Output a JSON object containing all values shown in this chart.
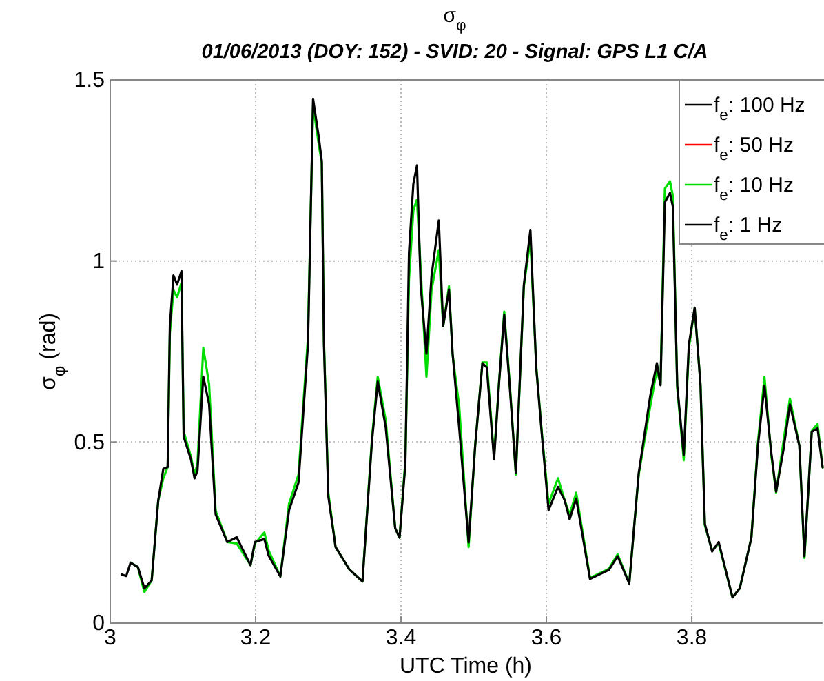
{
  "chart_data": {
    "type": "line",
    "title": "σ$_{φ}$",
    "subtitle": "01/06/2013 (DOY: 152) - SVID: 20 - Signal: GPS L1 C/A",
    "xlabel": "UTC Time (h)",
    "ylabel": "σ$_{φ}$ (rad)",
    "xlim": [
      3,
      3.98
    ],
    "ylim": [
      0,
      1.5
    ],
    "xticks": [
      3,
      3.2,
      3.4,
      3.6,
      3.8
    ],
    "yticks": [
      0,
      0.5,
      1,
      1.5
    ],
    "grid": true,
    "legend": "top right",
    "line_style": "solid",
    "marker": "none",
    "x": [
      3.016,
      3.022,
      3.028,
      3.038,
      3.047,
      3.057,
      3.066,
      3.073,
      3.079,
      3.082,
      3.087,
      3.092,
      3.098,
      3.101,
      3.111,
      3.116,
      3.12,
      3.128,
      3.136,
      3.145,
      3.161,
      3.174,
      3.193,
      3.199,
      3.212,
      3.218,
      3.234,
      3.246,
      3.259,
      3.272,
      3.279,
      3.287,
      3.291,
      3.294,
      3.3,
      3.31,
      3.329,
      3.347,
      3.36,
      3.368,
      3.379,
      3.392,
      3.398,
      3.406,
      3.411,
      3.417,
      3.422,
      3.427,
      3.435,
      3.442,
      3.452,
      3.458,
      3.466,
      3.471,
      3.48,
      3.493,
      3.502,
      3.512,
      3.518,
      3.528,
      3.535,
      3.542,
      3.55,
      3.558,
      3.569,
      3.578,
      3.586,
      3.594,
      3.603,
      3.616,
      3.625,
      3.632,
      3.641,
      3.66,
      3.686,
      3.698,
      3.714,
      3.727,
      3.743,
      3.752,
      3.757,
      3.763,
      3.77,
      3.774,
      3.78,
      3.789,
      3.796,
      3.804,
      3.812,
      3.818,
      3.828,
      3.837,
      3.856,
      3.866,
      3.882,
      3.891,
      3.9,
      3.909,
      3.916,
      3.926,
      3.935,
      3.948,
      3.955,
      3.965,
      3.973,
      3.98
    ],
    "series": [
      {
        "name": "f$_{e}$: 100 Hz",
        "color": "#000000",
        "values": [
          0.134,
          0.13,
          0.167,
          0.155,
          0.096,
          0.118,
          0.338,
          0.426,
          0.431,
          0.82,
          0.96,
          0.935,
          0.972,
          0.515,
          0.452,
          0.4,
          0.42,
          0.681,
          0.605,
          0.3,
          0.224,
          0.237,
          0.16,
          0.224,
          0.232,
          0.186,
          0.129,
          0.312,
          0.388,
          0.769,
          1.448,
          1.34,
          1.276,
          0.769,
          0.35,
          0.21,
          0.148,
          0.115,
          0.502,
          0.667,
          0.54,
          0.262,
          0.236,
          0.439,
          1.023,
          1.213,
          1.264,
          0.934,
          0.744,
          0.959,
          1.112,
          0.82,
          0.921,
          0.744,
          0.54,
          0.223,
          0.49,
          0.718,
          0.706,
          0.452,
          0.667,
          0.851,
          0.642,
          0.414,
          0.934,
          1.086,
          0.706,
          0.515,
          0.312,
          0.376,
          0.34,
          0.287,
          0.344,
          0.122,
          0.147,
          0.185,
          0.109,
          0.414,
          0.629,
          0.718,
          0.657,
          1.162,
          1.188,
          1.15,
          0.657,
          0.464,
          0.769,
          0.871,
          0.657,
          0.274,
          0.198,
          0.224,
          0.071,
          0.096,
          0.236,
          0.49,
          0.655,
          0.477,
          0.363,
          0.477,
          0.604,
          0.49,
          0.185,
          0.528,
          0.538,
          0.43
        ]
      },
      {
        "name": "f$_{e}$: 50 Hz",
        "color": "#ff0000",
        "values": [
          null,
          null,
          null,
          null,
          null,
          null,
          null,
          null,
          null,
          null,
          null,
          null,
          null,
          null,
          null,
          null,
          null,
          null,
          null,
          null,
          null,
          null,
          null,
          null,
          null,
          null,
          null,
          null,
          null,
          null,
          null,
          null,
          null,
          null,
          null,
          null,
          null,
          null,
          null,
          null,
          null,
          null,
          null,
          null,
          null,
          null,
          null,
          null,
          null,
          null,
          null,
          null,
          null,
          null,
          null,
          null,
          null,
          null,
          null,
          null,
          null,
          null,
          null,
          null,
          null,
          null,
          null,
          null,
          null,
          null,
          null,
          null,
          null,
          null,
          null,
          null,
          null,
          null,
          null,
          null,
          null,
          null,
          null,
          null,
          null,
          null,
          null,
          null,
          null,
          null,
          null,
          null,
          null,
          null,
          null,
          null,
          null,
          null,
          null,
          null,
          null,
          null,
          null,
          null,
          null,
          null
        ]
      },
      {
        "name": "f$_{e}$: 10 Hz",
        "color": "#00dd00",
        "values": [
          null,
          null,
          0.167,
          0.155,
          0.086,
          0.118,
          0.338,
          0.4,
          0.431,
          0.8,
          0.92,
          0.9,
          0.94,
          0.53,
          0.46,
          0.41,
          0.44,
          0.76,
          0.66,
          0.31,
          0.224,
          0.22,
          0.16,
          0.22,
          0.25,
          0.2,
          0.129,
          0.33,
          0.41,
          0.79,
          1.43,
          1.32,
          1.27,
          0.78,
          0.36,
          0.21,
          0.148,
          0.115,
          0.51,
          0.68,
          0.56,
          0.262,
          0.236,
          0.45,
          0.95,
          1.14,
          1.17,
          0.98,
          0.68,
          0.92,
          1.03,
          0.82,
          0.93,
          0.74,
          0.6,
          0.21,
          0.49,
          0.72,
          0.72,
          0.46,
          0.67,
          0.86,
          0.65,
          0.41,
          0.93,
          1.06,
          0.71,
          0.52,
          0.33,
          0.4,
          0.34,
          0.3,
          0.36,
          0.125,
          0.15,
          0.19,
          0.11,
          0.41,
          0.6,
          0.7,
          0.66,
          1.2,
          1.22,
          1.18,
          0.65,
          0.45,
          0.76,
          0.87,
          0.66,
          0.27,
          0.2,
          0.22,
          0.071,
          0.096,
          0.236,
          0.5,
          0.68,
          0.47,
          0.36,
          0.5,
          0.62,
          0.49,
          0.18,
          0.53,
          0.55,
          0.43
        ]
      },
      {
        "name": "f$_{e}$: 1 Hz",
        "color": "#000000",
        "values": [
          null,
          null,
          null,
          null,
          null,
          null,
          null,
          null,
          null,
          null,
          null,
          null,
          null,
          null,
          null,
          null,
          null,
          null,
          null,
          null,
          null,
          null,
          null,
          null,
          null,
          null,
          null,
          null,
          null,
          null,
          null,
          null,
          null,
          null,
          null,
          null,
          null,
          null,
          null,
          null,
          null,
          null,
          null,
          null,
          null,
          null,
          null,
          null,
          null,
          null,
          null,
          null,
          null,
          null,
          null,
          null,
          null,
          null,
          null,
          null,
          null,
          null,
          null,
          null,
          null,
          null,
          null,
          null,
          null,
          null,
          null,
          null,
          null,
          null,
          null,
          null,
          null,
          null,
          null,
          null,
          null,
          null,
          null,
          null,
          null,
          null,
          null,
          null,
          null,
          null,
          null,
          null,
          null,
          null,
          null,
          null,
          null,
          null,
          null,
          null,
          null,
          null,
          null,
          null,
          null,
          null
        ]
      }
    ]
  }
}
